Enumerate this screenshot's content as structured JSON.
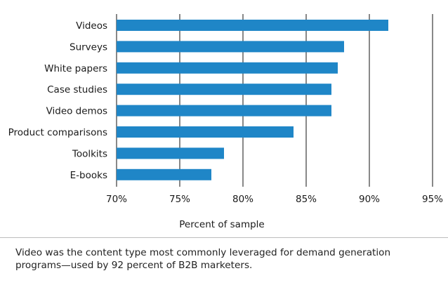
{
  "chart_data": {
    "type": "bar",
    "orientation": "horizontal",
    "categories": [
      "Videos",
      "Surveys",
      "White papers",
      "Case studies",
      "Video demos",
      "Product comparisons",
      "Toolkits",
      "E-books"
    ],
    "values": [
      91.5,
      88,
      87.5,
      87,
      87,
      84,
      78.5,
      77.5
    ],
    "unit": "%",
    "xlabel": "Percent of sample",
    "xlim": [
      70,
      95
    ],
    "xticks": [
      70,
      75,
      80,
      85,
      90,
      95
    ],
    "xtick_labels": [
      "70%",
      "75%",
      "80%",
      "85%",
      "90%",
      "95%"
    ],
    "grid": "vertical",
    "bar_color": "#1f86c7"
  },
  "caption": "Video was the content type most commonly leveraged for demand generation programs—used by 92 percent of B2B marketers."
}
